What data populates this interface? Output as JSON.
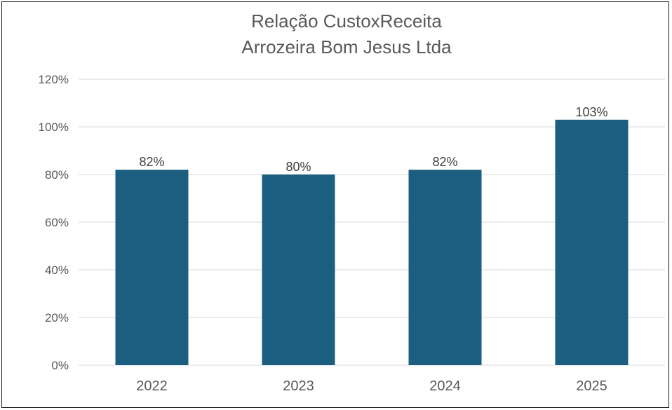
{
  "chart_data": {
    "type": "bar",
    "title": "Relação CustoxReceita",
    "subtitle": "Arrozeira Bom Jesus Ltda",
    "categories": [
      "2022",
      "2023",
      "2024",
      "2025"
    ],
    "values": [
      82,
      80,
      82,
      103
    ],
    "value_labels": [
      "82%",
      "80%",
      "82%",
      "103%"
    ],
    "y_ticks": [
      "0%",
      "20%",
      "40%",
      "60%",
      "80%",
      "100%",
      "120%"
    ],
    "ylim": [
      0,
      120
    ],
    "grid": true,
    "legend": "none",
    "bar_color": "#1b5e80",
    "gridline_color": "#d9d9d9"
  }
}
